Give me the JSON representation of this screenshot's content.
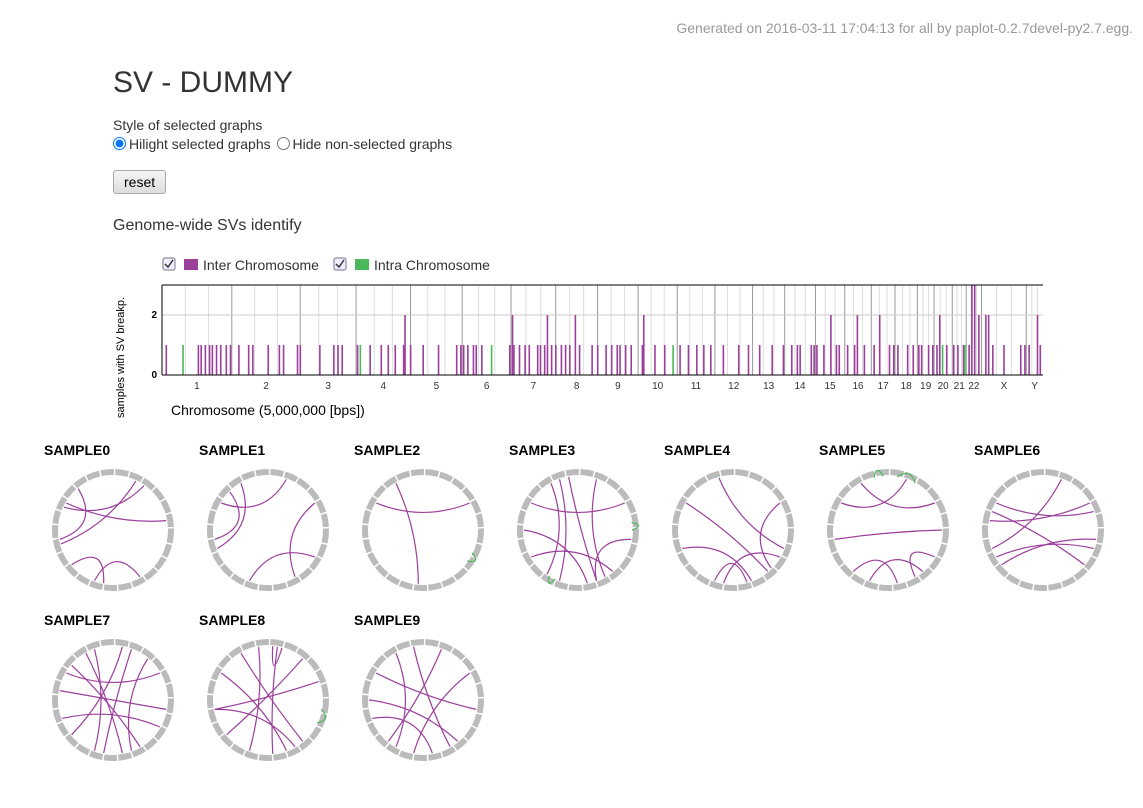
{
  "header": {
    "generated": "Generated on 2016-03-11 17:04:13 for all by paplot-0.2.7devel-py2.7.egg.",
    "title": "SV - DUMMY"
  },
  "controls": {
    "style_label": "Style of selected graphs",
    "options": [
      "Hilight selected graphs",
      "Hide non-selected graphs"
    ],
    "reset": "reset"
  },
  "genome": {
    "title": "Genome-wide SVs identify",
    "ylabel": "samples with SV breakp.",
    "xlabel": "Chromosome (5,000,000 [bps])",
    "ylim": [
      0,
      3
    ],
    "yticks": [
      0,
      2
    ],
    "xlim": [
      0,
      631
    ],
    "chromosomes": [
      {
        "name": "1",
        "bins": 50
      },
      {
        "name": "2",
        "bins": 49
      },
      {
        "name": "3",
        "bins": 40
      },
      {
        "name": "4",
        "bins": 39
      },
      {
        "name": "5",
        "bins": 37
      },
      {
        "name": "6",
        "bins": 35
      },
      {
        "name": "7",
        "bins": 32
      },
      {
        "name": "8",
        "bins": 30
      },
      {
        "name": "9",
        "bins": 29
      },
      {
        "name": "10",
        "bins": 28
      },
      {
        "name": "11",
        "bins": 27
      },
      {
        "name": "12",
        "bins": 27
      },
      {
        "name": "13",
        "bins": 23
      },
      {
        "name": "14",
        "bins": 22
      },
      {
        "name": "15",
        "bins": 21
      },
      {
        "name": "16",
        "bins": 19
      },
      {
        "name": "17",
        "bins": 17
      },
      {
        "name": "18",
        "bins": 16
      },
      {
        "name": "19",
        "bins": 12
      },
      {
        "name": "20",
        "bins": 13
      },
      {
        "name": "21",
        "bins": 10
      },
      {
        "name": "22",
        "bins": 11
      },
      {
        "name": "X",
        "bins": 32
      },
      {
        "name": "Y",
        "bins": 12
      }
    ],
    "series": [
      {
        "name": "Inter Chromosome",
        "color": "#9b3f9b",
        "bars": [
          {
            "x": 3,
            "y": 1
          },
          {
            "x": 26,
            "y": 1
          },
          {
            "x": 28,
            "y": 1
          },
          {
            "x": 31,
            "y": 1
          },
          {
            "x": 34,
            "y": 1
          },
          {
            "x": 36,
            "y": 1
          },
          {
            "x": 39,
            "y": 1
          },
          {
            "x": 42,
            "y": 1
          },
          {
            "x": 46,
            "y": 1
          },
          {
            "x": 49,
            "y": 1
          },
          {
            "x": 55,
            "y": 1
          },
          {
            "x": 62,
            "y": 1
          },
          {
            "x": 65,
            "y": 1
          },
          {
            "x": 76,
            "y": 1
          },
          {
            "x": 84,
            "y": 1
          },
          {
            "x": 87,
            "y": 1
          },
          {
            "x": 97,
            "y": 1
          },
          {
            "x": 99,
            "y": 1
          },
          {
            "x": 113,
            "y": 1
          },
          {
            "x": 123,
            "y": 1
          },
          {
            "x": 126,
            "y": 1
          },
          {
            "x": 129,
            "y": 1
          },
          {
            "x": 140,
            "y": 1
          },
          {
            "x": 149,
            "y": 1
          },
          {
            "x": 157,
            "y": 1
          },
          {
            "x": 162,
            "y": 1
          },
          {
            "x": 167,
            "y": 1
          },
          {
            "x": 173,
            "y": 1
          },
          {
            "x": 174,
            "y": 2
          },
          {
            "x": 178,
            "y": 1
          },
          {
            "x": 187,
            "y": 1
          },
          {
            "x": 198,
            "y": 1
          },
          {
            "x": 211,
            "y": 1
          },
          {
            "x": 214,
            "y": 1
          },
          {
            "x": 216,
            "y": 1
          },
          {
            "x": 219,
            "y": 1
          },
          {
            "x": 223,
            "y": 1
          },
          {
            "x": 225,
            "y": 1
          },
          {
            "x": 229,
            "y": 1
          },
          {
            "x": 249,
            "y": 1
          },
          {
            "x": 251,
            "y": 2
          },
          {
            "x": 252,
            "y": 1
          },
          {
            "x": 256,
            "y": 1
          },
          {
            "x": 260,
            "y": 1
          },
          {
            "x": 263,
            "y": 1
          },
          {
            "x": 269,
            "y": 1
          },
          {
            "x": 271,
            "y": 1
          },
          {
            "x": 274,
            "y": 1
          },
          {
            "x": 276,
            "y": 2
          },
          {
            "x": 279,
            "y": 1
          },
          {
            "x": 282,
            "y": 1
          },
          {
            "x": 286,
            "y": 1
          },
          {
            "x": 289,
            "y": 1
          },
          {
            "x": 292,
            "y": 1
          },
          {
            "x": 296,
            "y": 2
          },
          {
            "x": 299,
            "y": 1
          },
          {
            "x": 308,
            "y": 1
          },
          {
            "x": 312,
            "y": 1
          },
          {
            "x": 318,
            "y": 1
          },
          {
            "x": 322,
            "y": 1
          },
          {
            "x": 326,
            "y": 1
          },
          {
            "x": 328,
            "y": 1
          },
          {
            "x": 332,
            "y": 1
          },
          {
            "x": 336,
            "y": 1
          },
          {
            "x": 344,
            "y": 1
          },
          {
            "x": 345,
            "y": 2
          },
          {
            "x": 353,
            "y": 1
          },
          {
            "x": 360,
            "y": 1
          },
          {
            "x": 371,
            "y": 1
          },
          {
            "x": 377,
            "y": 1
          },
          {
            "x": 383,
            "y": 1
          },
          {
            "x": 388,
            "y": 1
          },
          {
            "x": 393,
            "y": 1
          },
          {
            "x": 402,
            "y": 1
          },
          {
            "x": 413,
            "y": 1
          },
          {
            "x": 420,
            "y": 1
          },
          {
            "x": 428,
            "y": 1
          },
          {
            "x": 437,
            "y": 1
          },
          {
            "x": 445,
            "y": 1
          },
          {
            "x": 451,
            "y": 1
          },
          {
            "x": 455,
            "y": 1
          },
          {
            "x": 457,
            "y": 1
          },
          {
            "x": 465,
            "y": 1
          },
          {
            "x": 467,
            "y": 1
          },
          {
            "x": 469,
            "y": 1
          },
          {
            "x": 474,
            "y": 1
          },
          {
            "x": 479,
            "y": 2
          },
          {
            "x": 483,
            "y": 1
          },
          {
            "x": 485,
            "y": 1
          },
          {
            "x": 491,
            "y": 1
          },
          {
            "x": 496,
            "y": 1
          },
          {
            "x": 498,
            "y": 2
          },
          {
            "x": 503,
            "y": 1
          },
          {
            "x": 510,
            "y": 1
          },
          {
            "x": 514,
            "y": 2
          },
          {
            "x": 521,
            "y": 1
          },
          {
            "x": 524,
            "y": 1
          },
          {
            "x": 527,
            "y": 1
          },
          {
            "x": 534,
            "y": 1
          },
          {
            "x": 538,
            "y": 1
          },
          {
            "x": 542,
            "y": 1
          },
          {
            "x": 544,
            "y": 1
          },
          {
            "x": 549,
            "y": 1
          },
          {
            "x": 552,
            "y": 1
          },
          {
            "x": 555,
            "y": 1
          },
          {
            "x": 557,
            "y": 2
          },
          {
            "x": 562,
            "y": 1
          },
          {
            "x": 567,
            "y": 1
          },
          {
            "x": 570,
            "y": 1
          },
          {
            "x": 574,
            "y": 1
          },
          {
            "x": 578,
            "y": 1
          },
          {
            "x": 580,
            "y": 3
          },
          {
            "x": 582,
            "y": 3
          },
          {
            "x": 585,
            "y": 2
          },
          {
            "x": 590,
            "y": 2
          },
          {
            "x": 592,
            "y": 2
          },
          {
            "x": 595,
            "y": 1
          },
          {
            "x": 603,
            "y": 1
          },
          {
            "x": 615,
            "y": 1
          },
          {
            "x": 618,
            "y": 1
          },
          {
            "x": 621,
            "y": 1
          },
          {
            "x": 627,
            "y": 2
          },
          {
            "x": 629,
            "y": 1
          }
        ]
      },
      {
        "name": "Intra Chromosome",
        "color": "#4cb85c",
        "bars": [
          {
            "x": 15,
            "y": 1
          },
          {
            "x": 142,
            "y": 1
          },
          {
            "x": 236,
            "y": 1
          },
          {
            "x": 366,
            "y": 1
          },
          {
            "x": 559,
            "y": 1
          },
          {
            "x": 575,
            "y": 1
          }
        ]
      }
    ]
  },
  "samples": [
    {
      "name": "SAMPLE0",
      "inter": [
        {
          "a": 25,
          "b": 255
        },
        {
          "a": 35,
          "b": 295
        },
        {
          "a": 80,
          "b": 300
        },
        {
          "a": 150,
          "b": 200
        },
        {
          "a": 230,
          "b": 190
        },
        {
          "a": 320,
          "b": 260
        }
      ],
      "intra": []
    },
    {
      "name": "SAMPLE1",
      "inter": [
        {
          "a": 20,
          "b": 300
        },
        {
          "a": 60,
          "b": 150
        },
        {
          "a": 260,
          "b": 315
        },
        {
          "a": 250,
          "b": 330
        },
        {
          "a": 120,
          "b": 200
        }
      ],
      "intra": []
    },
    {
      "name": "SAMPLE2",
      "inter": [
        {
          "a": 300,
          "b": 60
        },
        {
          "a": 330,
          "b": 185
        }
      ],
      "intra": [
        {
          "a": 115,
          "b": 125
        }
      ]
    },
    {
      "name": "SAMPLE3",
      "inter": [
        {
          "a": 340,
          "b": 200
        },
        {
          "a": 350,
          "b": 160
        },
        {
          "a": 20,
          "b": 150
        },
        {
          "a": 300,
          "b": 60
        },
        {
          "a": 270,
          "b": 170
        },
        {
          "a": 240,
          "b": 140
        },
        {
          "a": 330,
          "b": 215
        },
        {
          "a": 100,
          "b": 160
        }
      ],
      "intra": [
        {
          "a": 82,
          "b": 90
        },
        {
          "a": 205,
          "b": 212
        }
      ]
    },
    {
      "name": "SAMPLE4",
      "inter": [
        {
          "a": 345,
          "b": 110
        },
        {
          "a": 300,
          "b": 140
        },
        {
          "a": 250,
          "b": 160
        },
        {
          "a": 200,
          "b": 165
        },
        {
          "a": 120,
          "b": 190
        },
        {
          "a": 60,
          "b": 135
        }
      ],
      "intra": []
    },
    {
      "name": "SAMPLE5",
      "inter": [
        {
          "a": 330,
          "b": 60
        },
        {
          "a": 300,
          "b": 20
        },
        {
          "a": 260,
          "b": 90
        },
        {
          "a": 220,
          "b": 170
        },
        {
          "a": 140,
          "b": 200
        },
        {
          "a": 120,
          "b": 150
        }
      ],
      "intra": [
        {
          "a": 10,
          "b": 30
        },
        {
          "a": 345,
          "b": 355
        }
      ]
    },
    {
      "name": "SAMPLE6",
      "inter": [
        {
          "a": 300,
          "b": 70
        },
        {
          "a": 20,
          "b": 250
        },
        {
          "a": 60,
          "b": 280
        },
        {
          "a": 240,
          "b": 110
        },
        {
          "a": 100,
          "b": 230
        },
        {
          "a": 130,
          "b": 290
        }
      ],
      "intra": []
    },
    {
      "name": "SAMPLE7",
      "inter": [
        {
          "a": 340,
          "b": 200
        },
        {
          "a": 330,
          "b": 170
        },
        {
          "a": 310,
          "b": 150
        },
        {
          "a": 10,
          "b": 230
        },
        {
          "a": 300,
          "b": 60
        },
        {
          "a": 280,
          "b": 100
        },
        {
          "a": 250,
          "b": 120
        },
        {
          "a": 20,
          "b": 190
        },
        {
          "a": 40,
          "b": 160
        }
      ],
      "intra": []
    },
    {
      "name": "SAMPLE8",
      "inter": [
        {
          "a": 10,
          "b": 175
        },
        {
          "a": 350,
          "b": 200
        },
        {
          "a": 330,
          "b": 140
        },
        {
          "a": 300,
          "b": 160
        },
        {
          "a": 260,
          "b": 150
        },
        {
          "a": 40,
          "b": 230
        },
        {
          "a": 70,
          "b": 260
        },
        {
          "a": 5,
          "b": 15
        }
      ],
      "intra": [
        {
          "a": 100,
          "b": 115
        }
      ]
    },
    {
      "name": "SAMPLE9",
      "inter": [
        {
          "a": 350,
          "b": 150
        },
        {
          "a": 20,
          "b": 220
        },
        {
          "a": 300,
          "b": 100
        },
        {
          "a": 270,
          "b": 140
        },
        {
          "a": 250,
          "b": 170
        },
        {
          "a": 330,
          "b": 210
        },
        {
          "a": 60,
          "b": 190
        }
      ],
      "intra": []
    }
  ]
}
